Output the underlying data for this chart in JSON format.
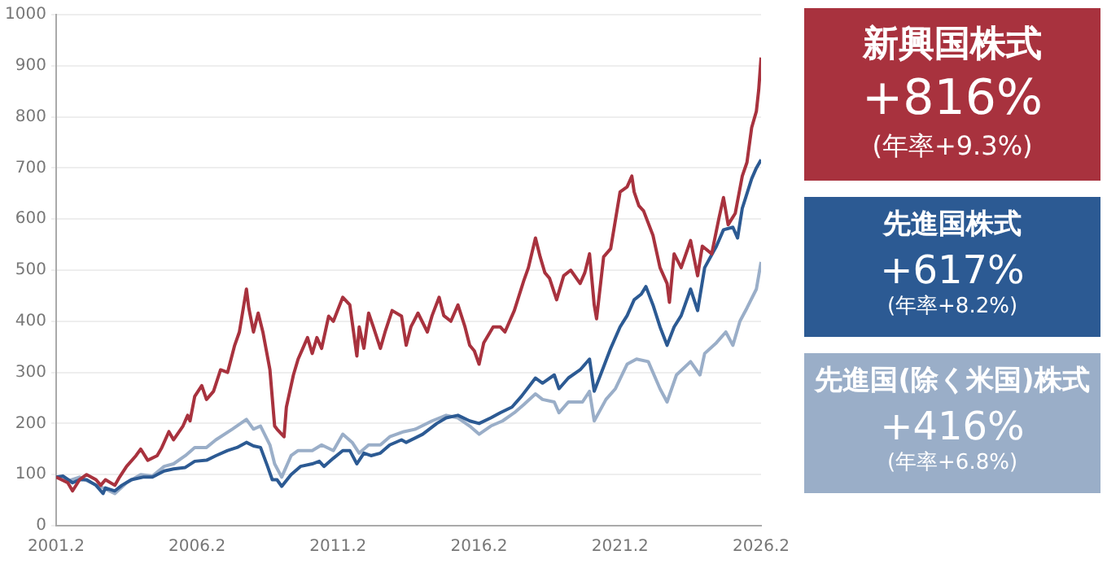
{
  "chart_data": {
    "type": "line",
    "xlim": [
      "2001-02",
      "2026-02"
    ],
    "xticks": [
      {
        "value": "2001-02",
        "label": "2001.2"
      },
      {
        "value": "2006-02",
        "label": "2006.2"
      },
      {
        "value": "2011-02",
        "label": "2011.2"
      },
      {
        "value": "2016-02",
        "label": "2016.2"
      },
      {
        "value": "2021-02",
        "label": "2021.2"
      },
      {
        "value": "2026-02",
        "label": "2026.2"
      }
    ],
    "ylim": [
      0,
      1000
    ],
    "yticks": [
      0,
      100,
      200,
      300,
      400,
      500,
      600,
      700,
      800,
      900,
      1000
    ],
    "grid": "y",
    "legend": "right",
    "marker": "none",
    "line_style": "solid",
    "annotations": [
      "+816%",
      "(年率+9.3%)",
      "+617%",
      "(年率+8.2%)",
      "+416%",
      "(年率+6.8%)"
    ],
    "series": [
      {
        "name": "新興国株式",
        "color": "#a8323e",
        "x": [
          "2001-02",
          "2001-07",
          "2001-09",
          "2001-12",
          "2002-03",
          "2002-07",
          "2002-09",
          "2002-11",
          "2003-03",
          "2003-05",
          "2003-08",
          "2003-12",
          "2004-02",
          "2004-05",
          "2004-09",
          "2004-11",
          "2005-02",
          "2005-04",
          "2005-08",
          "2005-10",
          "2005-11",
          "2006-01",
          "2006-04",
          "2006-06",
          "2006-09",
          "2006-12",
          "2007-03",
          "2007-06",
          "2007-08",
          "2007-11",
          "2007-12",
          "2008-02",
          "2008-04",
          "2008-06",
          "2008-09",
          "2008-11",
          "2008-12",
          "2009-03",
          "2009-04",
          "2009-07",
          "2009-09",
          "2009-11",
          "2010-01",
          "2010-03",
          "2010-05",
          "2010-07",
          "2010-10",
          "2010-12",
          "2011-04",
          "2011-07",
          "2011-10",
          "2011-11",
          "2012-01",
          "2012-03",
          "2012-05",
          "2012-08",
          "2012-10",
          "2013-01",
          "2013-05",
          "2013-07",
          "2013-09",
          "2013-12",
          "2014-04",
          "2014-06",
          "2014-09",
          "2014-11",
          "2015-02",
          "2015-05",
          "2015-08",
          "2015-10",
          "2015-12",
          "2016-02",
          "2016-04",
          "2016-08",
          "2016-11",
          "2017-01",
          "2017-05",
          "2017-09",
          "2017-11",
          "2018-02",
          "2018-04",
          "2018-06",
          "2018-08",
          "2018-11",
          "2019-02",
          "2019-05",
          "2019-09",
          "2019-11",
          "2020-01",
          "2020-03",
          "2020-04",
          "2020-07",
          "2020-10",
          "2021-02",
          "2021-05",
          "2021-07",
          "2021-08",
          "2021-10",
          "2021-12",
          "2022-04",
          "2022-07",
          "2022-10",
          "2022-11",
          "2023-01",
          "2023-04",
          "2023-08",
          "2023-11",
          "2024-01",
          "2024-05",
          "2024-08",
          "2024-10",
          "2024-12",
          "2025-03",
          "2025-06",
          "2025-08",
          "2025-10",
          "2025-11",
          "2025-12",
          "2026-01",
          "2026-02"
        ],
        "values": [
          95,
          84,
          68,
          90,
          100,
          90,
          79,
          90,
          79,
          95,
          116,
          137,
          150,
          128,
          137,
          153,
          184,
          168,
          195,
          216,
          205,
          253,
          274,
          247,
          263,
          305,
          300,
          353,
          379,
          463,
          426,
          379,
          416,
          379,
          305,
          195,
          189,
          174,
          232,
          295,
          326,
          347,
          368,
          337,
          368,
          347,
          410,
          400,
          447,
          432,
          332,
          389,
          347,
          416,
          389,
          347,
          379,
          421,
          410,
          353,
          389,
          416,
          379,
          411,
          447,
          411,
          400,
          432,
          389,
          353,
          342,
          316,
          358,
          389,
          389,
          379,
          421,
          479,
          505,
          563,
          526,
          495,
          484,
          442,
          489,
          500,
          474,
          495,
          532,
          432,
          405,
          526,
          542,
          653,
          663,
          684,
          653,
          626,
          616,
          568,
          505,
          474,
          437,
          532,
          505,
          558,
          489,
          547,
          532,
          600,
          642,
          589,
          611,
          684,
          711,
          779,
          795,
          811,
          853,
          916
        ]
      },
      {
        "name": "先進国株式",
        "color": "#2c5a93",
        "x": [
          "2001-02",
          "2001-05",
          "2001-09",
          "2001-12",
          "2002-03",
          "2002-07",
          "2002-10",
          "2002-11",
          "2003-03",
          "2003-06",
          "2003-10",
          "2004-03",
          "2004-07",
          "2004-12",
          "2005-04",
          "2005-09",
          "2006-01",
          "2006-06",
          "2006-10",
          "2007-03",
          "2007-07",
          "2007-11",
          "2008-02",
          "2008-05",
          "2008-08",
          "2008-10",
          "2008-12",
          "2009-02",
          "2009-06",
          "2009-10",
          "2010-03",
          "2010-06",
          "2010-08",
          "2010-12",
          "2011-04",
          "2011-07",
          "2011-10",
          "2012-01",
          "2012-04",
          "2012-08",
          "2012-12",
          "2013-05",
          "2013-07",
          "2014-02",
          "2014-08",
          "2014-12",
          "2015-05",
          "2015-10",
          "2016-02",
          "2016-07",
          "2016-11",
          "2017-04",
          "2017-08",
          "2018-02",
          "2018-05",
          "2018-10",
          "2018-12",
          "2019-04",
          "2019-09",
          "2020-01",
          "2020-03",
          "2020-07",
          "2020-10",
          "2021-02",
          "2021-05",
          "2021-08",
          "2021-11",
          "2022-01",
          "2022-04",
          "2022-07",
          "2022-10",
          "2023-01",
          "2023-04",
          "2023-08",
          "2023-11",
          "2024-02",
          "2024-07",
          "2024-10",
          "2025-02",
          "2025-04",
          "2025-06",
          "2025-10",
          "2025-12",
          "2026-02"
        ],
        "values": [
          95,
          97,
          84,
          90,
          90,
          79,
          63,
          74,
          68,
          79,
          90,
          95,
          95,
          107,
          111,
          114,
          126,
          128,
          137,
          147,
          153,
          163,
          156,
          153,
          116,
          90,
          90,
          77,
          100,
          116,
          121,
          126,
          116,
          132,
          147,
          147,
          121,
          142,
          137,
          142,
          158,
          168,
          163,
          179,
          200,
          211,
          216,
          205,
          200,
          211,
          221,
          232,
          253,
          289,
          279,
          295,
          268,
          289,
          305,
          326,
          263,
          311,
          347,
          389,
          411,
          442,
          453,
          468,
          432,
          389,
          353,
          389,
          411,
          463,
          421,
          505,
          547,
          579,
          584,
          563,
          621,
          679,
          700,
          716
        ]
      },
      {
        "name": "先進国(除く米国)株式",
        "color": "#9aaec8",
        "x": [
          "2001-02",
          "2001-08",
          "2001-12",
          "2002-05",
          "2002-10",
          "2003-03",
          "2003-08",
          "2004-02",
          "2004-07",
          "2004-12",
          "2005-04",
          "2005-09",
          "2006-01",
          "2006-06",
          "2006-10",
          "2007-05",
          "2007-11",
          "2008-02",
          "2008-05",
          "2008-09",
          "2008-11",
          "2009-02",
          "2009-06",
          "2009-09",
          "2010-03",
          "2010-07",
          "2010-12",
          "2011-04",
          "2011-08",
          "2011-11",
          "2012-03",
          "2012-08",
          "2012-12",
          "2013-06",
          "2013-11",
          "2014-06",
          "2014-12",
          "2015-05",
          "2015-10",
          "2016-02",
          "2016-07",
          "2016-12",
          "2017-05",
          "2017-09",
          "2018-02",
          "2018-05",
          "2018-10",
          "2018-12",
          "2019-04",
          "2019-10",
          "2020-01",
          "2020-03",
          "2020-08",
          "2020-12",
          "2021-05",
          "2021-09",
          "2022-02",
          "2022-07",
          "2022-10",
          "2023-02",
          "2023-08",
          "2023-12",
          "2024-02",
          "2024-07",
          "2024-11",
          "2025-02",
          "2025-05",
          "2025-08",
          "2025-12",
          "2026-02"
        ],
        "values": [
          95,
          89,
          95,
          84,
          74,
          63,
          84,
          100,
          97,
          116,
          121,
          137,
          153,
          153,
          168,
          189,
          208,
          189,
          195,
          158,
          121,
          95,
          137,
          147,
          147,
          158,
          147,
          179,
          163,
          142,
          158,
          158,
          174,
          184,
          189,
          205,
          216,
          211,
          195,
          179,
          195,
          205,
          221,
          237,
          258,
          247,
          242,
          221,
          242,
          242,
          263,
          205,
          247,
          268,
          316,
          326,
          321,
          268,
          242,
          295,
          321,
          295,
          337,
          358,
          379,
          353,
          400,
          426,
          463,
          516
        ]
      }
    ]
  }
}
